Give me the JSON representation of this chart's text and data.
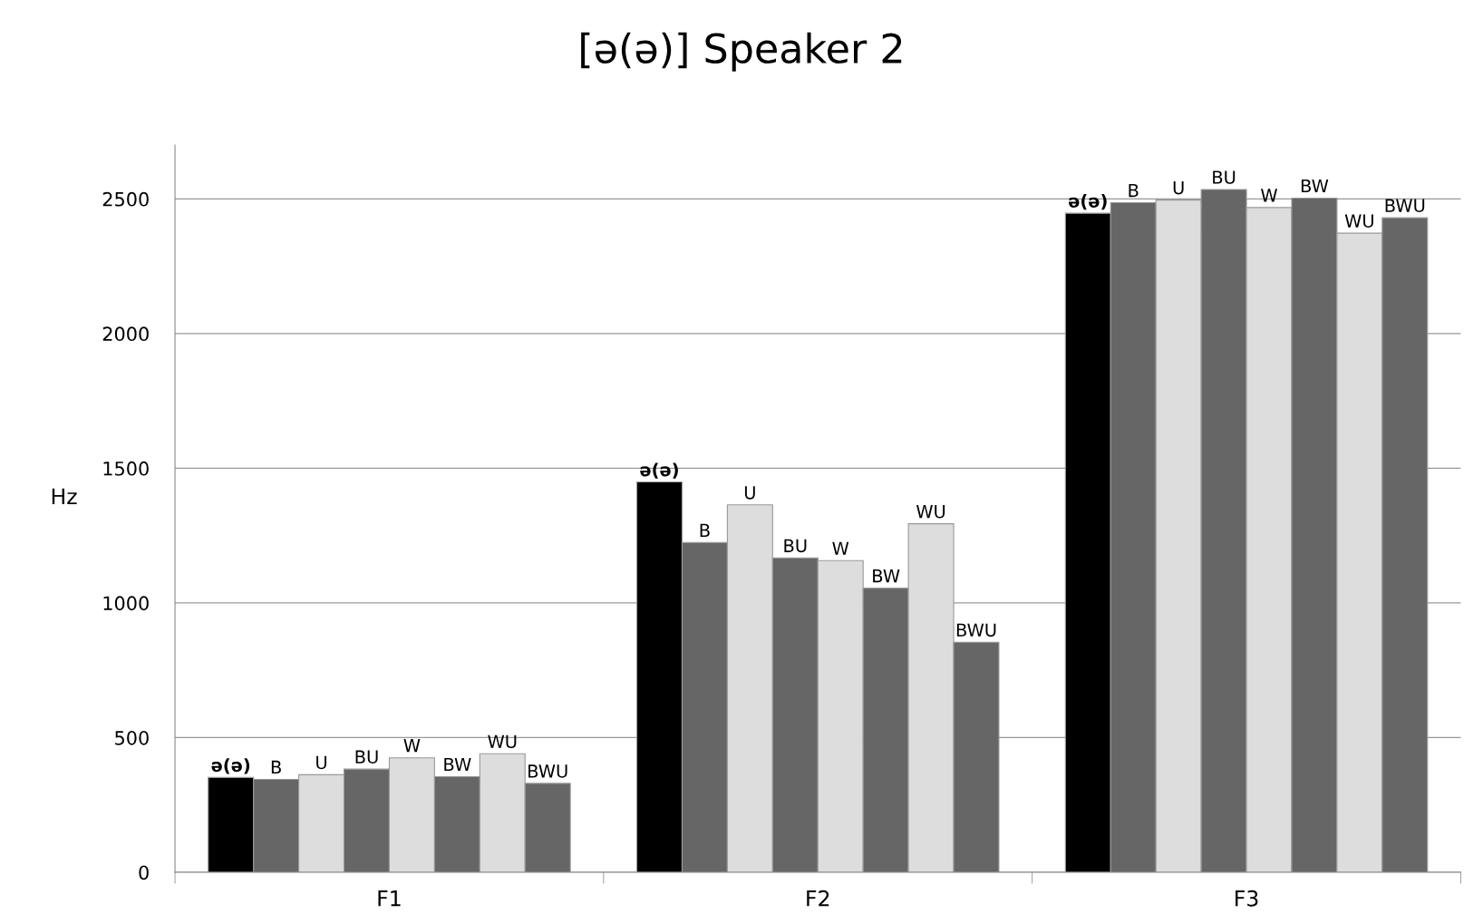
{
  "chart_data": {
    "type": "bar",
    "title": "[ə(ə)] Speaker 2",
    "ylabel": "Hz",
    "categories": [
      "F1",
      "F2",
      "F3"
    ],
    "series": [
      {
        "name": "ə(ə)",
        "color": "#000000",
        "values": [
          352,
          1449,
          2447
        ]
      },
      {
        "name": "B",
        "color": "#666666",
        "values": [
          345,
          1224,
          2486
        ]
      },
      {
        "name": "U",
        "color": "#dddddd",
        "values": [
          362,
          1364,
          2496
        ]
      },
      {
        "name": "BU",
        "color": "#666666",
        "values": [
          383,
          1167,
          2535
        ]
      },
      {
        "name": "W",
        "color": "#dddddd",
        "values": [
          425,
          1157,
          2468
        ]
      },
      {
        "name": "BW",
        "color": "#666666",
        "values": [
          355,
          1055,
          2503
        ]
      },
      {
        "name": "WU",
        "color": "#dddddd",
        "values": [
          440,
          1294,
          2373
        ]
      },
      {
        "name": "BWU",
        "color": "#666666",
        "values": [
          330,
          854,
          2430
        ]
      }
    ],
    "ylim": [
      0,
      2700
    ],
    "yticks": [
      0,
      500,
      1000,
      1500,
      2000,
      2500
    ],
    "grid": "y",
    "legend": false
  }
}
